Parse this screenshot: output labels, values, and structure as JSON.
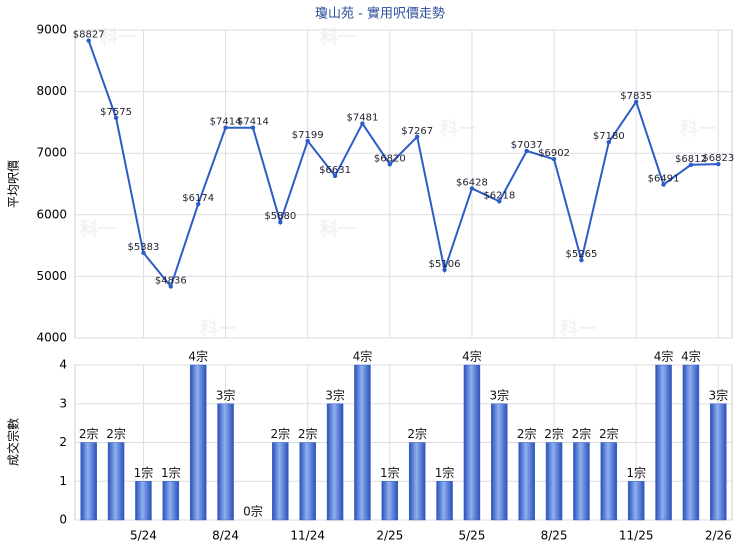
{
  "watermark": "科一",
  "chart_data": [
    {
      "type": "line",
      "title": "瓊山苑 - 實用呎價走勢",
      "y_label": "平均呎價",
      "color": "#2b5cc8",
      "categories": [
        null,
        null,
        "5/24",
        null,
        null,
        "8/24",
        null,
        null,
        "11/24",
        null,
        null,
        "2/25",
        null,
        null,
        "5/25",
        null,
        null,
        "8/25",
        null,
        null,
        "11/25",
        null,
        null,
        "2/26"
      ],
      "values": [
        8827,
        7575,
        5383,
        4836,
        6174,
        7414,
        7414,
        5880,
        7199,
        6631,
        7481,
        6820,
        7267,
        5106,
        6428,
        6218,
        7037,
        6902,
        5265,
        7180,
        7835,
        6491,
        6812,
        6823
      ],
      "value_labels": [
        "$8827",
        "$7575",
        "$5383",
        "$4836",
        "$6174",
        "$7414",
        "$7414",
        "$5880",
        "$7199",
        "$6631",
        "$7481",
        "$6820",
        "$7267",
        "$5106",
        "$6428",
        "$6218",
        "$7037",
        "$6902",
        "$5265",
        "$7180",
        "$7835",
        "$6491",
        "$6812",
        "$6823"
      ],
      "ylim": [
        4000,
        9000
      ],
      "yticks": [
        4000,
        5000,
        6000,
        7000,
        8000,
        9000
      ],
      "grid": true
    },
    {
      "type": "bar",
      "y_label": "成交宗數",
      "color": "#3b63c9",
      "categories": [
        null,
        null,
        "5/24",
        null,
        null,
        "8/24",
        null,
        null,
        "11/24",
        null,
        null,
        "2/25",
        null,
        null,
        "5/25",
        null,
        null,
        "8/25",
        null,
        null,
        "11/25",
        null,
        null,
        "2/26"
      ],
      "values": [
        2,
        2,
        1,
        1,
        4,
        3,
        0,
        2,
        2,
        3,
        4,
        1,
        2,
        1,
        4,
        3,
        2,
        2,
        2,
        2,
        1,
        4,
        4,
        3
      ],
      "value_labels": [
        "2宗",
        "2宗",
        "1宗",
        "1宗",
        "4宗",
        "3宗",
        "0宗",
        "2宗",
        "2宗",
        "3宗",
        "4宗",
        "1宗",
        "2宗",
        "1宗",
        "4宗",
        "3宗",
        "2宗",
        "2宗",
        "2宗",
        "2宗",
        "1宗",
        "4宗",
        "4宗",
        "3宗"
      ],
      "ylim": [
        0,
        4
      ],
      "yticks": [
        0,
        1,
        2,
        3,
        4
      ],
      "grid": true
    }
  ]
}
